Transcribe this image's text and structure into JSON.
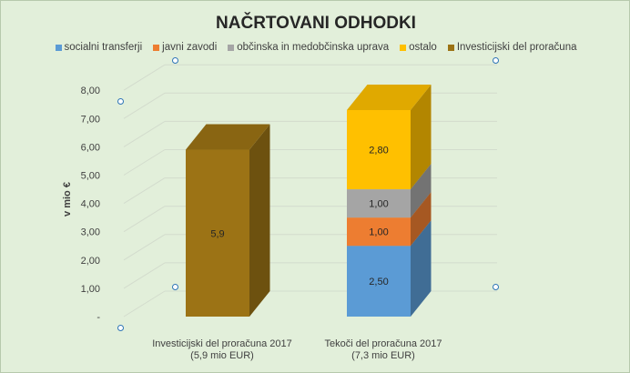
{
  "chart_data": {
    "type": "bar",
    "stacked": true,
    "three_d": true,
    "title": "NAČRTOVANI ODHODKI",
    "ylabel": "v mio €",
    "ylim": [
      0,
      8
    ],
    "y_ticks": [
      "-",
      "1,00",
      "2,00",
      "3,00",
      "4,00",
      "5,00",
      "6,00",
      "7,00",
      "8,00"
    ],
    "grid": true,
    "legend_position": "top",
    "categories": [
      [
        "Investicijski del proračuna 2017",
        "(5,9 mio EUR)"
      ],
      [
        "Tekoči del proračuna 2017",
        "(7,3 mio EUR)"
      ]
    ],
    "series": [
      {
        "name": "socialni transferji",
        "color": "#5b9bd5",
        "values": [
          null,
          2.5
        ],
        "labels": [
          "",
          "2,50"
        ]
      },
      {
        "name": "javni zavodi",
        "color": "#ed7d31",
        "values": [
          null,
          1.0
        ],
        "labels": [
          "",
          "1,00"
        ]
      },
      {
        "name": "občinska in medobčinska uprava",
        "color": "#a5a5a5",
        "values": [
          null,
          1.0
        ],
        "labels": [
          "",
          "1,00"
        ]
      },
      {
        "name": "ostalo",
        "color": "#ffc000",
        "values": [
          null,
          2.8
        ],
        "labels": [
          "",
          "2,80"
        ]
      },
      {
        "name": "Investicijski del proračuna",
        "color": "#9c7315",
        "values": [
          5.9,
          null
        ],
        "labels": [
          "5,9",
          ""
        ]
      }
    ]
  }
}
